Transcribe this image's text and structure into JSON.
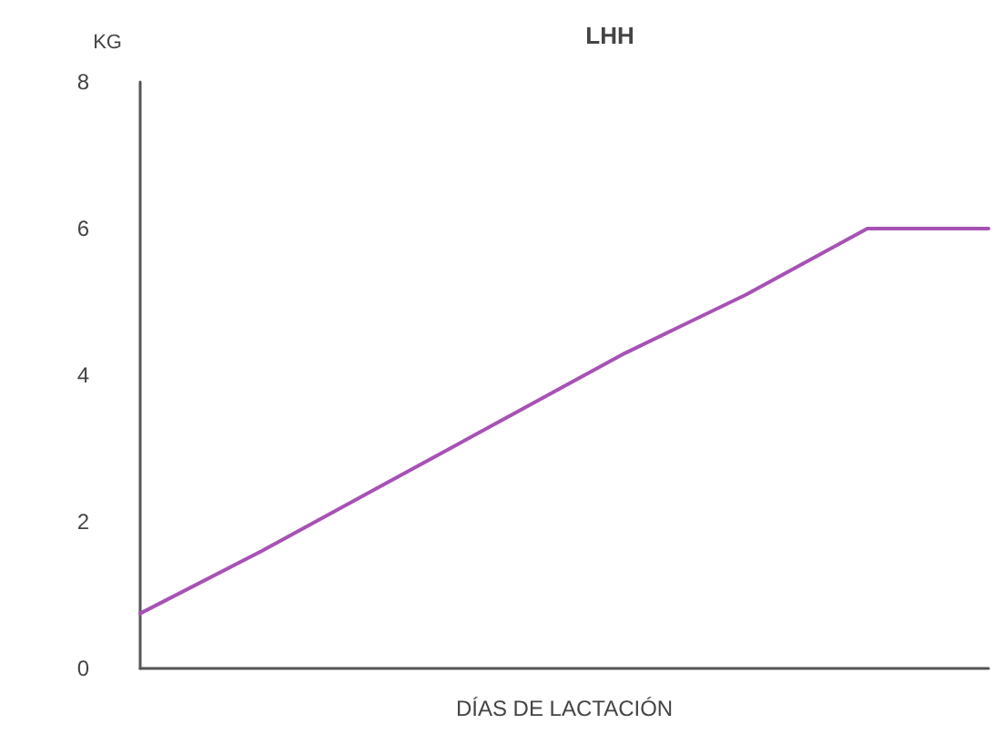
{
  "chart_data": {
    "type": "line",
    "title": "LHH",
    "xlabel": "DÍAS DE LACTACIÓN",
    "ylabel": "KG",
    "categories": [
      null,
      null,
      null,
      null,
      null,
      null,
      null,
      null
    ],
    "series": [
      {
        "color": "#a652b4",
        "values": [
          0.75,
          1.6,
          2.5,
          3.4,
          4.3,
          5.1,
          6,
          6
        ]
      }
    ],
    "ylim": [
      0,
      8
    ],
    "yticks": [
      0,
      2,
      4,
      6,
      8
    ],
    "grid": false,
    "marker": "none",
    "line_style": "solid"
  }
}
